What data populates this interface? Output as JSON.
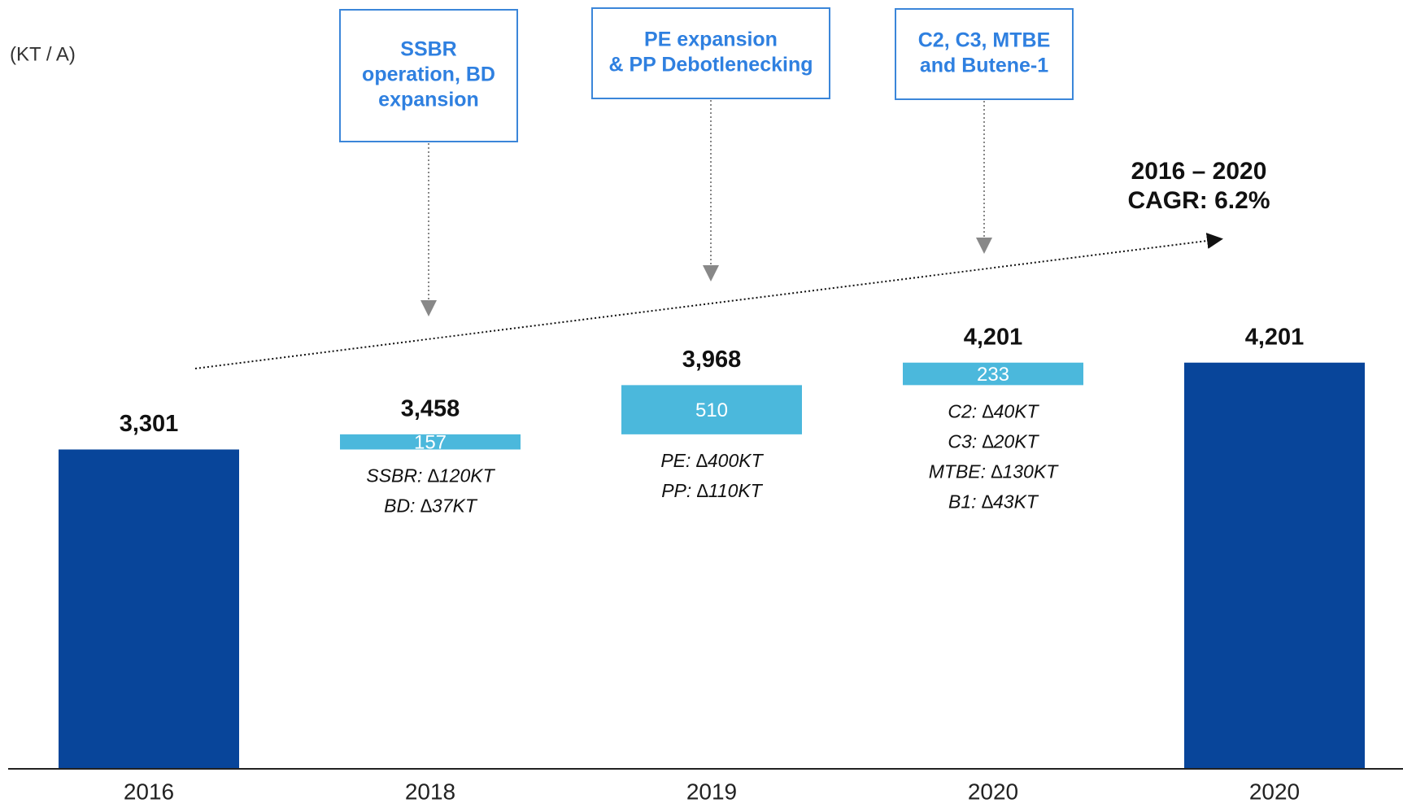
{
  "chart_data": {
    "type": "waterfall",
    "unit_label": "(KT / A)",
    "categories": [
      "2016",
      "2018",
      "2019",
      "2020",
      "2020"
    ],
    "values": [
      3301,
      157,
      510,
      233,
      4201
    ],
    "measure": [
      "absolute",
      "relative",
      "relative",
      "relative",
      "total"
    ],
    "value_labels": [
      "3,301",
      "157",
      "510",
      "233",
      "4,201"
    ],
    "total_labels": [
      null,
      "3,458",
      "3,968",
      "4,201",
      null
    ],
    "notes": [
      [],
      [
        "SSBR: ∆120KT",
        "BD: ∆37KT"
      ],
      [
        "PE: ∆400KT",
        "PP: ∆110KT"
      ],
      [
        "C2: ∆40KT",
        "C3: ∆20KT",
        "MTBE: ∆130KT",
        "B1: ∆43KT"
      ],
      []
    ],
    "callouts": [
      null,
      [
        "SSBR",
        "operation, BD",
        "expansion"
      ],
      [
        "PE expansion",
        "& PP Debotlenecking"
      ],
      [
        "C2, C3, MTBE",
        "and Butene-1"
      ],
      null
    ],
    "annotation": [
      "2016 – 2020",
      "CAGR: 6.2%"
    ],
    "total_color": "#08459a",
    "delta_color": "#4bb8dc",
    "ylim": [
      0,
      7900
    ]
  }
}
